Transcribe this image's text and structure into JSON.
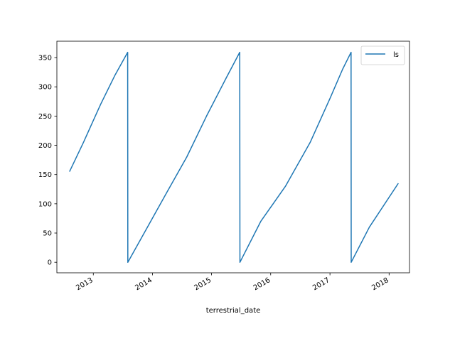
{
  "chart_data": {
    "type": "line",
    "title": "",
    "xlabel": "terrestrial_date",
    "ylabel": "",
    "x_ticks": [
      "2013",
      "2014",
      "2015",
      "2016",
      "2017",
      "2018"
    ],
    "y_ticks": [
      0,
      50,
      100,
      150,
      200,
      250,
      300,
      350
    ],
    "xlim": [
      "2012-05-21",
      "2018-05-07"
    ],
    "ylim": [
      -18,
      378
    ],
    "grid": false,
    "legend": {
      "position": "top-right",
      "entries": [
        "ls"
      ]
    },
    "series": [
      {
        "name": "ls",
        "color": "#1f77b4",
        "points": [
          [
            "2012-08-07",
            155
          ],
          [
            "2012-11-01",
            205
          ],
          [
            "2013-02-15",
            270
          ],
          [
            "2013-05-15",
            320
          ],
          [
            "2013-08-01",
            359
          ],
          [
            "2013-08-02",
            0
          ],
          [
            "2013-12-01",
            60
          ],
          [
            "2014-04-01",
            120
          ],
          [
            "2014-08-01",
            180
          ],
          [
            "2014-12-01",
            250
          ],
          [
            "2015-04-01",
            315
          ],
          [
            "2015-06-24",
            359
          ],
          [
            "2015-06-25",
            0
          ],
          [
            "2015-11-01",
            70
          ],
          [
            "2016-04-01",
            130
          ],
          [
            "2016-09-01",
            205
          ],
          [
            "2017-01-01",
            280
          ],
          [
            "2017-03-20",
            330
          ],
          [
            "2017-05-11",
            359
          ],
          [
            "2017-05-12",
            0
          ],
          [
            "2017-09-01",
            60
          ],
          [
            "2018-02-27",
            135
          ]
        ]
      }
    ]
  }
}
